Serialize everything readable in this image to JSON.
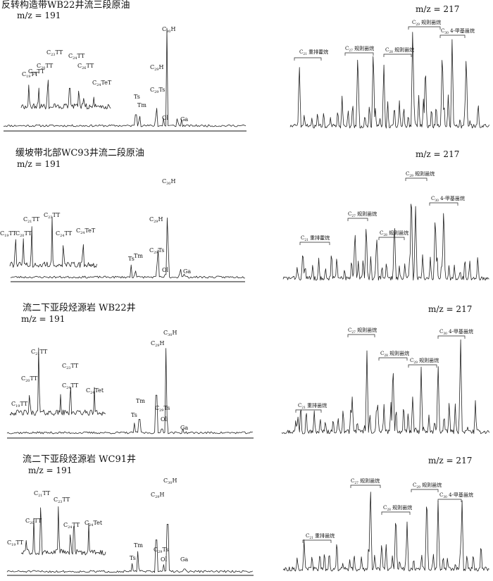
{
  "chart_data": [
    {
      "type": "line",
      "title": "反转构造带WB22井流三段原油",
      "subtitle": "m/z = 191",
      "peak_labels": [
        "C21TT",
        "C20TT",
        "C19TT",
        "C23TT",
        "C24TT",
        "C26TT",
        "C24TeT",
        "Ts",
        "Tm",
        "C29Ts",
        "C29H",
        "C30H",
        "Ol",
        "Ga"
      ],
      "x": [],
      "y": []
    },
    {
      "type": "line",
      "title": "",
      "subtitle": "m/z = 217",
      "peak_labels": [
        "C21 重排藿烷",
        "C27 规则甾烷",
        "C28 规则甾烷",
        "C29 规则甾烷",
        "C30 4-甲基甾烷"
      ],
      "x": [],
      "y": []
    },
    {
      "type": "line",
      "title": "缓坡带北部WC93井流二段原油",
      "subtitle": "m/z = 191",
      "peak_labels": [
        "C19TT",
        "C20TT",
        "C21TT",
        "C23TT",
        "C24TT",
        "C24TeT",
        "Ts",
        "Tm",
        "C29Ts",
        "C29H",
        "C30H",
        "Ol",
        "Ga"
      ],
      "x": [],
      "y": []
    },
    {
      "type": "line",
      "title": "",
      "subtitle": "m/z = 217",
      "peak_labels": [
        "C21 重排藿烷",
        "C27 规则甾烷",
        "C28 规则甾烷",
        "C29 规则甾烷",
        "C30 4-甲基甾烷"
      ],
      "x": [],
      "y": []
    },
    {
      "type": "line",
      "title": "流二下亚段烃源岩 WB22井",
      "subtitle": "m/z = 191",
      "peak_labels": [
        "C19TT",
        "C20TT",
        "C21TT",
        "C23TT",
        "C24TT",
        "C24Tet",
        "Ts",
        "Tm",
        "C29Ts",
        "C29H",
        "C30H",
        "Ol",
        "Ga"
      ],
      "x": [],
      "y": []
    },
    {
      "type": "line",
      "title": "",
      "subtitle": "m/z = 217",
      "peak_labels": [
        "C21 重排甾烷",
        "C27 规则甾烷",
        "C28 规则甾烷",
        "C29 规则甾烷",
        "C30 4-甲基甾烷"
      ],
      "x": [],
      "y": []
    },
    {
      "type": "line",
      "title": "流二下亚段烃源岩 WC91井",
      "subtitle": "m/z = 191",
      "peak_labels": [
        "C19TT",
        "C20TT",
        "C21TT",
        "C23TT",
        "C24TT",
        "C24Tet",
        "Ts",
        "Tm",
        "C29Ts",
        "C29H",
        "C30H",
        "Ol",
        "Ga"
      ],
      "x": [],
      "y": []
    },
    {
      "type": "line",
      "title": "",
      "subtitle": "m/z = 217",
      "peak_labels": [
        "C21 重排甾烷",
        "C27 规则甾烷",
        "C28 规则甾烷",
        "C29 规则甾烷",
        "C30 4-甲基甾烷"
      ],
      "x": [],
      "y": []
    }
  ],
  "labels191": [
    [
      [
        "C",
        "21",
        "TT"
      ],
      [
        "C",
        "20",
        "TT"
      ],
      [
        "C",
        "19",
        "TT"
      ],
      [
        "C",
        "23",
        "TT"
      ],
      [
        "C",
        "24",
        "TT"
      ],
      [
        "C",
        "26",
        "TT"
      ],
      [
        "C",
        "24",
        "TeT"
      ],
      [
        "Ts"
      ],
      [
        "Tm"
      ],
      [
        "C",
        "29",
        "Ts"
      ],
      [
        "C",
        "29",
        "H"
      ],
      [
        "C",
        "30",
        "H"
      ],
      [
        "Ol"
      ],
      [
        "Ga"
      ]
    ],
    [
      [
        "C",
        "19",
        "TT"
      ],
      [
        "C",
        "20",
        "TT"
      ],
      [
        "C",
        "21",
        "TT"
      ],
      [
        "C",
        "23",
        "TT"
      ],
      [
        "C",
        "24",
        "TT"
      ],
      [
        "C",
        "24",
        "TeT"
      ],
      [
        "Ts"
      ],
      [
        "Tm"
      ],
      [
        "C",
        "29",
        "Ts"
      ],
      [
        "C",
        "29",
        "H"
      ],
      [
        "C",
        "30",
        "H"
      ],
      [
        "Ol"
      ],
      [
        "Ga"
      ]
    ],
    [
      [
        "C",
        "19",
        "TT"
      ],
      [
        "C",
        "20",
        "TT"
      ],
      [
        "C",
        "21",
        "TT"
      ],
      [
        "C",
        "23",
        "TT"
      ],
      [
        "C",
        "24",
        "TT"
      ],
      [
        "C",
        "24",
        "Tet"
      ],
      [
        "Ts"
      ],
      [
        "Tm"
      ],
      [
        "C",
        "29",
        "Ts"
      ],
      [
        "C",
        "29",
        "H"
      ],
      [
        "C",
        "30",
        "H"
      ],
      [
        "Ol"
      ],
      [
        "Ga"
      ]
    ],
    [
      [
        "C",
        "19",
        "TT"
      ],
      [
        "C",
        "20",
        "TT"
      ],
      [
        "C",
        "21",
        "TT"
      ],
      [
        "C",
        "23",
        "TT"
      ],
      [
        "C",
        "24",
        "TT"
      ],
      [
        "C",
        "24",
        "Tet"
      ],
      [
        "Ts"
      ],
      [
        "Tm"
      ],
      [
        "C",
        "29",
        "Ts"
      ],
      [
        "C",
        "29",
        "H"
      ],
      [
        "C",
        "30",
        "H"
      ],
      [
        "Ol"
      ],
      [
        "Ga"
      ]
    ]
  ],
  "labels217": [
    [
      [
        "C",
        "21",
        " 重排藿烷"
      ],
      [
        "C",
        "27",
        " 规则甾烷"
      ],
      [
        "C",
        "28",
        " 规则甾烷"
      ],
      [
        "C",
        "29",
        " 规则甾烷"
      ],
      [
        "C",
        "30",
        " 4-甲基甾烷"
      ]
    ],
    [
      [
        "C",
        "21",
        " 重排藿烷"
      ],
      [
        "C",
        "27",
        " 规则甾烷"
      ],
      [
        "C",
        "28",
        " 规则甾烷"
      ],
      [
        "C",
        "29",
        " 规则甾烷"
      ],
      [
        "C",
        "30",
        " 4-甲基甾烷"
      ]
    ],
    [
      [
        "C",
        "21",
        " 重排甾烷"
      ],
      [
        "C",
        "27",
        " 规则甾烷"
      ],
      [
        "C",
        "28",
        " 规则甾烷"
      ],
      [
        "C",
        "29",
        " 规则甾烷"
      ],
      [
        "C",
        "30",
        " 4-甲基甾烷"
      ]
    ],
    [
      [
        "C",
        "21",
        " 重排甾烷"
      ],
      [
        "C",
        "27",
        " 规则甾烷"
      ],
      [
        "C",
        "28",
        " 规则甾烷"
      ],
      [
        "C",
        "29",
        " 规则甾烷"
      ],
      [
        "C",
        "30",
        " 4-甲基甾烷"
      ]
    ]
  ],
  "stroke": "#222222"
}
